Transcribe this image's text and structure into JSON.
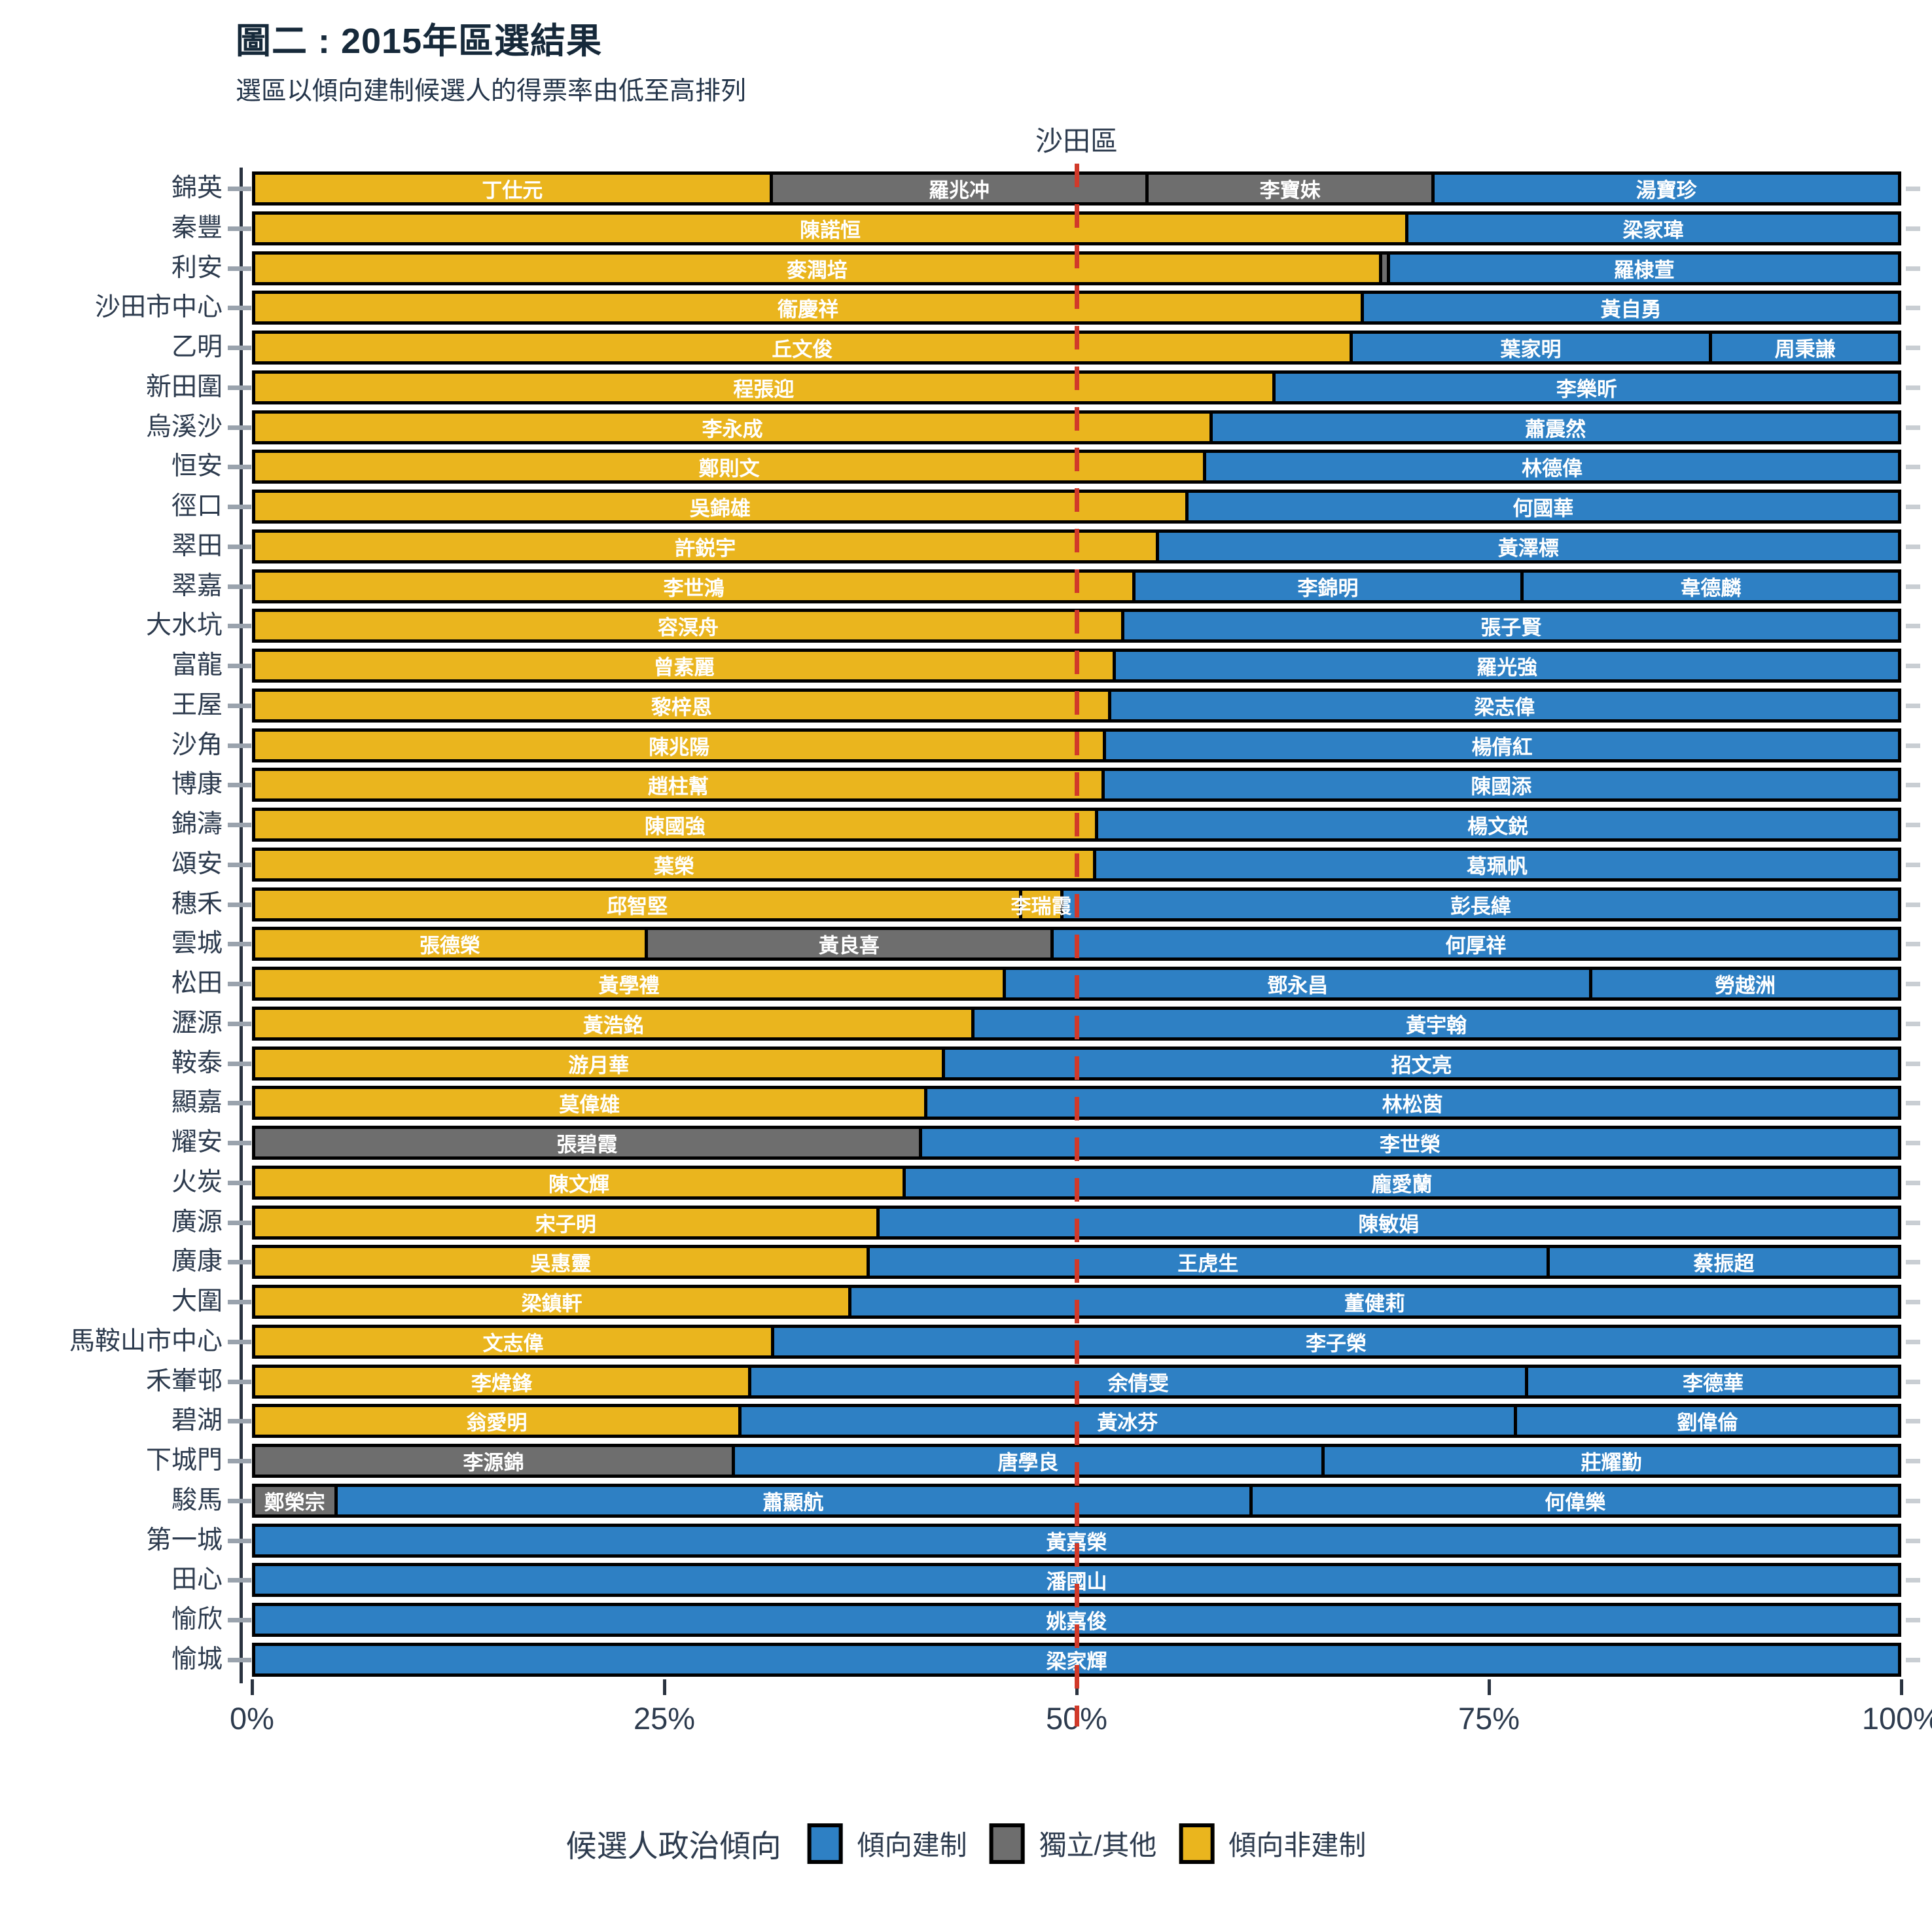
{
  "title": "圖二 : 2015年區選結果",
  "subtitle": "選區以傾向建制候選人的得票率由低至高排列",
  "chart_data": {
    "type": "bar",
    "orientation": "horizontal",
    "stacked": true,
    "panel_title": "沙田區",
    "x_ticks": [
      "0%",
      "25%",
      "50%",
      "75%",
      "100%"
    ],
    "x_range": [
      0,
      100
    ],
    "grid": false,
    "reference_line": {
      "value": 50,
      "style": "dashed",
      "color": "#d13a2a"
    },
    "camps": {
      "est": {
        "label": "傾向建制",
        "color": "#2e80c4"
      },
      "ind": {
        "label": "獨立/其他",
        "color": "#6e6e6e"
      },
      "nonest": {
        "label": "傾向非建制",
        "color": "#eab51e"
      }
    },
    "legend": {
      "title": "候選人政治傾向",
      "position": "bottom",
      "entries": [
        {
          "camp": "est",
          "label": "傾向建制"
        },
        {
          "camp": "ind",
          "label": "獨立/其他"
        },
        {
          "camp": "nonest",
          "label": "傾向非建制"
        }
      ]
    },
    "rows": [
      {
        "district": "錦英",
        "segments": [
          {
            "candidate": "丁仕元",
            "camp": "nonest",
            "pct": 31.5
          },
          {
            "candidate": "羅兆冲",
            "camp": "ind",
            "pct": 22.9
          },
          {
            "candidate": "李寶妹",
            "camp": "ind",
            "pct": 17.4
          },
          {
            "candidate": "湯寶珍",
            "camp": "est",
            "pct": 28.2
          }
        ]
      },
      {
        "district": "秦豐",
        "segments": [
          {
            "candidate": "陳諾恒",
            "camp": "nonest",
            "pct": 70.2
          },
          {
            "candidate": "梁家瑋",
            "camp": "est",
            "pct": 29.8
          }
        ]
      },
      {
        "district": "利安",
        "segments": [
          {
            "candidate": "麥潤培",
            "camp": "nonest",
            "pct": 68.6
          },
          {
            "candidate": "",
            "camp": "ind",
            "pct": 0.5
          },
          {
            "candidate": "羅棣萱",
            "camp": "est",
            "pct": 30.9
          }
        ]
      },
      {
        "district": "沙田市中心",
        "segments": [
          {
            "candidate": "衞慶祥",
            "camp": "nonest",
            "pct": 67.5
          },
          {
            "candidate": "黃自勇",
            "camp": "est",
            "pct": 32.5
          }
        ]
      },
      {
        "district": "乙明",
        "segments": [
          {
            "candidate": "丘文俊",
            "camp": "nonest",
            "pct": 66.8
          },
          {
            "candidate": "葉家明",
            "camp": "est",
            "pct": 21.9
          },
          {
            "candidate": "周秉謙",
            "camp": "est",
            "pct": 11.3
          }
        ]
      },
      {
        "district": "新田圍",
        "segments": [
          {
            "candidate": "程張迎",
            "camp": "nonest",
            "pct": 62.1
          },
          {
            "candidate": "李樂昕",
            "camp": "est",
            "pct": 37.9
          }
        ]
      },
      {
        "district": "烏溪沙",
        "segments": [
          {
            "candidate": "李永成",
            "camp": "nonest",
            "pct": 58.3
          },
          {
            "candidate": "蕭震然",
            "camp": "est",
            "pct": 41.7
          }
        ]
      },
      {
        "district": "恒安",
        "segments": [
          {
            "candidate": "鄭則文",
            "camp": "nonest",
            "pct": 57.9
          },
          {
            "candidate": "林德偉",
            "camp": "est",
            "pct": 42.1
          }
        ]
      },
      {
        "district": "徑口",
        "segments": [
          {
            "candidate": "吳錦雄",
            "camp": "nonest",
            "pct": 56.8
          },
          {
            "candidate": "何國華",
            "camp": "est",
            "pct": 43.2
          }
        ]
      },
      {
        "district": "翠田",
        "segments": [
          {
            "candidate": "許鋭宇",
            "camp": "nonest",
            "pct": 55.0
          },
          {
            "candidate": "黃澤標",
            "camp": "est",
            "pct": 45.0
          }
        ]
      },
      {
        "district": "翠嘉",
        "segments": [
          {
            "candidate": "李世鴻",
            "camp": "nonest",
            "pct": 53.6
          },
          {
            "candidate": "李錦明",
            "camp": "est",
            "pct": 23.6
          },
          {
            "candidate": "韋德麟",
            "camp": "est",
            "pct": 22.8
          }
        ]
      },
      {
        "district": "大水坑",
        "segments": [
          {
            "candidate": "容溟舟",
            "camp": "nonest",
            "pct": 52.9
          },
          {
            "candidate": "張子賢",
            "camp": "est",
            "pct": 47.1
          }
        ]
      },
      {
        "district": "富龍",
        "segments": [
          {
            "candidate": "曾素麗",
            "camp": "nonest",
            "pct": 52.4
          },
          {
            "candidate": "羅光強",
            "camp": "est",
            "pct": 47.6
          }
        ]
      },
      {
        "district": "王屋",
        "segments": [
          {
            "candidate": "黎梓恩",
            "camp": "nonest",
            "pct": 52.1
          },
          {
            "candidate": "梁志偉",
            "camp": "est",
            "pct": 47.9
          }
        ]
      },
      {
        "district": "沙角",
        "segments": [
          {
            "candidate": "陳兆陽",
            "camp": "nonest",
            "pct": 51.8
          },
          {
            "candidate": "楊倩紅",
            "camp": "est",
            "pct": 48.2
          }
        ]
      },
      {
        "district": "博康",
        "segments": [
          {
            "candidate": "趙柱幫",
            "camp": "nonest",
            "pct": 51.7
          },
          {
            "candidate": "陳國添",
            "camp": "est",
            "pct": 48.3
          }
        ]
      },
      {
        "district": "錦濤",
        "segments": [
          {
            "candidate": "陳國強",
            "camp": "nonest",
            "pct": 51.3
          },
          {
            "candidate": "楊文鋭",
            "camp": "est",
            "pct": 48.7
          }
        ]
      },
      {
        "district": "頌安",
        "segments": [
          {
            "candidate": "葉榮",
            "camp": "nonest",
            "pct": 51.2
          },
          {
            "candidate": "葛珮帆",
            "camp": "est",
            "pct": 48.8
          }
        ]
      },
      {
        "district": "穗禾",
        "segments": [
          {
            "candidate": "邱智堅",
            "camp": "nonest",
            "pct": 46.7
          },
          {
            "candidate": "李瑞霞",
            "camp": "nonest",
            "pct": 2.5
          },
          {
            "candidate": "彭長緯",
            "camp": "est",
            "pct": 50.8
          }
        ]
      },
      {
        "district": "雲城",
        "segments": [
          {
            "candidate": "張德榮",
            "camp": "nonest",
            "pct": 23.9
          },
          {
            "candidate": "黃良喜",
            "camp": "ind",
            "pct": 24.7
          },
          {
            "candidate": "何厚祥",
            "camp": "est",
            "pct": 51.4
          }
        ]
      },
      {
        "district": "松田",
        "segments": [
          {
            "candidate": "黃學禮",
            "camp": "nonest",
            "pct": 45.7
          },
          {
            "candidate": "鄧永昌",
            "camp": "est",
            "pct": 35.7
          },
          {
            "candidate": "勞越洲",
            "camp": "est",
            "pct": 18.6
          }
        ]
      },
      {
        "district": "瀝源",
        "segments": [
          {
            "candidate": "黃浩銘",
            "camp": "nonest",
            "pct": 43.8
          },
          {
            "candidate": "黃宇翰",
            "camp": "est",
            "pct": 56.2
          }
        ]
      },
      {
        "district": "鞍泰",
        "segments": [
          {
            "candidate": "游月華",
            "camp": "nonest",
            "pct": 42.0
          },
          {
            "candidate": "招文亮",
            "camp": "est",
            "pct": 58.0
          }
        ]
      },
      {
        "district": "顯嘉",
        "segments": [
          {
            "candidate": "莫偉雄",
            "camp": "nonest",
            "pct": 40.9
          },
          {
            "candidate": "林松茵",
            "camp": "est",
            "pct": 59.1
          }
        ]
      },
      {
        "district": "耀安",
        "segments": [
          {
            "candidate": "張碧霞",
            "camp": "ind",
            "pct": 40.6
          },
          {
            "candidate": "李世榮",
            "camp": "est",
            "pct": 59.4
          }
        ]
      },
      {
        "district": "火炭",
        "segments": [
          {
            "candidate": "陳文輝",
            "camp": "nonest",
            "pct": 39.6
          },
          {
            "candidate": "龐愛蘭",
            "camp": "est",
            "pct": 60.4
          }
        ]
      },
      {
        "district": "廣源",
        "segments": [
          {
            "candidate": "宋子明",
            "camp": "nonest",
            "pct": 38.0
          },
          {
            "candidate": "陳敏娟",
            "camp": "est",
            "pct": 62.0
          }
        ]
      },
      {
        "district": "廣康",
        "segments": [
          {
            "candidate": "吳惠靈",
            "camp": "nonest",
            "pct": 37.4
          },
          {
            "candidate": "王虎生",
            "camp": "est",
            "pct": 41.4
          },
          {
            "candidate": "蔡振超",
            "camp": "est",
            "pct": 21.2
          }
        ]
      },
      {
        "district": "大圍",
        "segments": [
          {
            "candidate": "梁鎮軒",
            "camp": "nonest",
            "pct": 36.3
          },
          {
            "candidate": "董健莉",
            "camp": "est",
            "pct": 63.7
          }
        ]
      },
      {
        "district": "馬鞍山市中心",
        "segments": [
          {
            "candidate": "文志偉",
            "camp": "nonest",
            "pct": 31.6
          },
          {
            "candidate": "李子榮",
            "camp": "est",
            "pct": 68.4
          }
        ]
      },
      {
        "district": "禾輋邨",
        "segments": [
          {
            "candidate": "李煒鋒",
            "camp": "nonest",
            "pct": 30.2
          },
          {
            "candidate": "余倩雯",
            "camp": "est",
            "pct": 47.3
          },
          {
            "candidate": "李德華",
            "camp": "est",
            "pct": 22.5
          }
        ]
      },
      {
        "district": "碧湖",
        "segments": [
          {
            "candidate": "翁愛明",
            "camp": "nonest",
            "pct": 29.6
          },
          {
            "candidate": "黃冰芬",
            "camp": "est",
            "pct": 47.2
          },
          {
            "candidate": "劉偉倫",
            "camp": "est",
            "pct": 23.2
          }
        ]
      },
      {
        "district": "下城門",
        "segments": [
          {
            "candidate": "李源錦",
            "camp": "ind",
            "pct": 29.2
          },
          {
            "candidate": "唐學良",
            "camp": "est",
            "pct": 35.9
          },
          {
            "candidate": "莊耀勤",
            "camp": "est",
            "pct": 34.9
          }
        ]
      },
      {
        "district": "駿馬",
        "segments": [
          {
            "candidate": "鄭榮宗",
            "camp": "ind",
            "pct": 5.0
          },
          {
            "candidate": "蕭顯航",
            "camp": "est",
            "pct": 55.7
          },
          {
            "candidate": "何偉樂",
            "camp": "est",
            "pct": 39.3
          }
        ]
      },
      {
        "district": "第一城",
        "segments": [
          {
            "candidate": "黃嘉榮",
            "camp": "est",
            "pct": 100
          }
        ]
      },
      {
        "district": "田心",
        "segments": [
          {
            "candidate": "潘國山",
            "camp": "est",
            "pct": 100
          }
        ]
      },
      {
        "district": "愉欣",
        "segments": [
          {
            "candidate": "姚嘉俊",
            "camp": "est",
            "pct": 100
          }
        ]
      },
      {
        "district": "愉城",
        "segments": [
          {
            "candidate": "梁家輝",
            "camp": "est",
            "pct": 100
          }
        ]
      }
    ]
  }
}
